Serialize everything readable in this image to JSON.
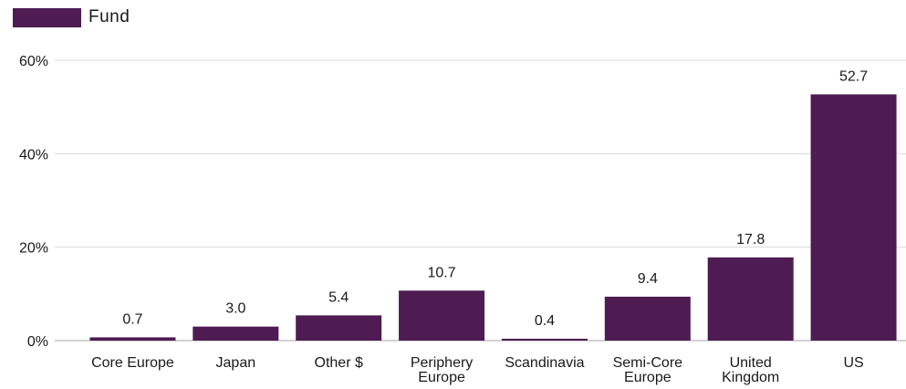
{
  "legend": {
    "label": "Fund"
  },
  "colors": {
    "bar": "#4e1c52",
    "grid": "#d9d9d9",
    "axis": "#a6a6a6"
  },
  "chart_data": {
    "type": "bar",
    "categories": [
      "Core Europe",
      "Japan",
      "Other $",
      "Periphery Europe",
      "Scandinavia",
      "Semi-Core Europe",
      "United Kingdom",
      "US"
    ],
    "category_lines": [
      [
        "Core Europe"
      ],
      [
        "Japan"
      ],
      [
        "Other $"
      ],
      [
        "Periphery",
        "Europe"
      ],
      [
        "Scandinavia"
      ],
      [
        "Semi-Core",
        "Europe"
      ],
      [
        "United",
        "Kingdom"
      ],
      [
        "US"
      ]
    ],
    "series": [
      {
        "name": "Fund",
        "values": [
          0.7,
          3.0,
          5.4,
          10.7,
          0.4,
          9.4,
          17.8,
          52.7
        ],
        "labels": [
          "0.7",
          "3.0",
          "5.4",
          "10.7",
          "0.4",
          "9.4",
          "17.8",
          "52.7"
        ]
      }
    ],
    "ylim": [
      0,
      60
    ],
    "yticks": [
      0,
      20,
      40,
      60
    ],
    "ytick_labels": [
      "0%",
      "20%",
      "40%",
      "60%"
    ],
    "grid": true,
    "legend_position": "top-left"
  }
}
